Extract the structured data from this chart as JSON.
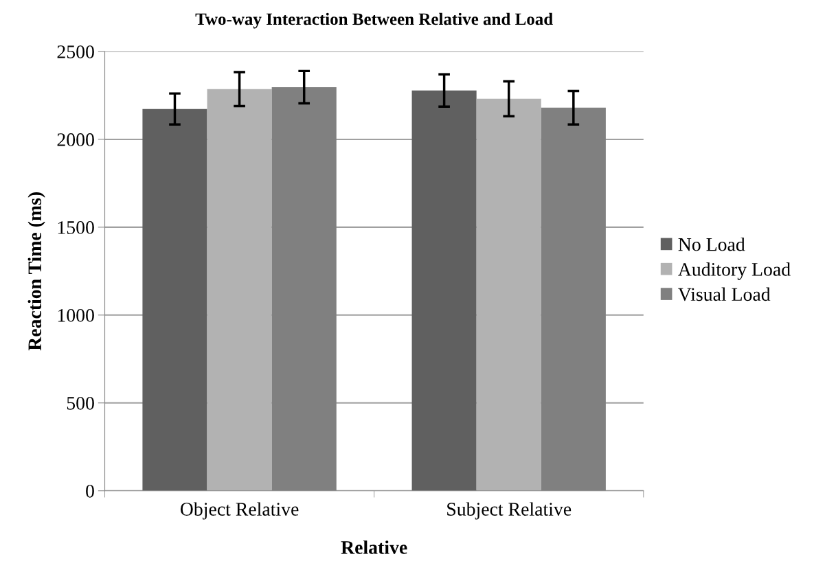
{
  "chart_data": {
    "type": "bar",
    "title": "Two-way Interaction Between Relative and Load",
    "xlabel": "Relative",
    "ylabel": "Reaction Time (ms)",
    "categories": [
      "Object Relative",
      "Subject Relative"
    ],
    "series": [
      {
        "name": "No Load",
        "color": "#606060",
        "values": [
          2173,
          2278
        ],
        "errors": [
          88,
          92
        ]
      },
      {
        "name": "Auditory Load",
        "color": "#b2b2b2",
        "values": [
          2286,
          2231
        ],
        "errors": [
          97,
          99
        ]
      },
      {
        "name": "Visual Load",
        "color": "#808080",
        "values": [
          2297,
          2180
        ],
        "errors": [
          92,
          95
        ]
      }
    ],
    "ylim": [
      0,
      2500
    ],
    "yticks": [
      0,
      500,
      1000,
      1500,
      2000,
      2500
    ],
    "grid": "y",
    "legend": "right"
  }
}
